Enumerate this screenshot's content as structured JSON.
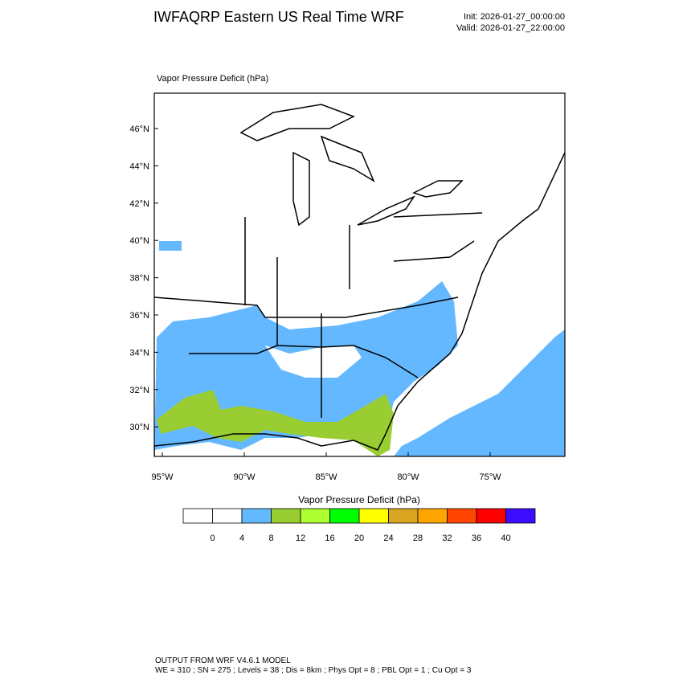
{
  "header": {
    "title": "IWFAQRP Eastern US Real Time WRF",
    "init": "Init: 2026-01-27_00:00:00",
    "valid": "Valid: 2026-01-27_22:00:00"
  },
  "map": {
    "field_label": "Vapor Pressure Deficit   (hPa)",
    "lat_labels": [
      "46°N",
      "44°N",
      "42°N",
      "40°N",
      "38°N",
      "36°N",
      "34°N",
      "32°N",
      "30°N"
    ],
    "lon_labels": [
      "95°W",
      "90°W",
      "85°W",
      "80°W",
      "75°W"
    ]
  },
  "colorbar": {
    "title": "Vapor Pressure Deficit  (hPa)",
    "colors": [
      "#ffffff",
      "#ffffff",
      "#63b8ff",
      "#9acd32",
      "#adff2f",
      "#00ff00",
      "#ffff00",
      "#daa520",
      "#ffa500",
      "#ff4500",
      "#ff0000",
      "#3a0dff"
    ],
    "labels": [
      0,
      4,
      8,
      12,
      16,
      20,
      24,
      28,
      32,
      36,
      40
    ]
  },
  "footer": {
    "line1": "OUTPUT FROM WRF V4.6.1 MODEL",
    "line2": "WE = 310 ; SN = 275 ; Levels = 38 ; Dis = 8km ; Phys Opt = 8 ; PBL Opt = 1 ; Cu Opt = 3"
  }
}
